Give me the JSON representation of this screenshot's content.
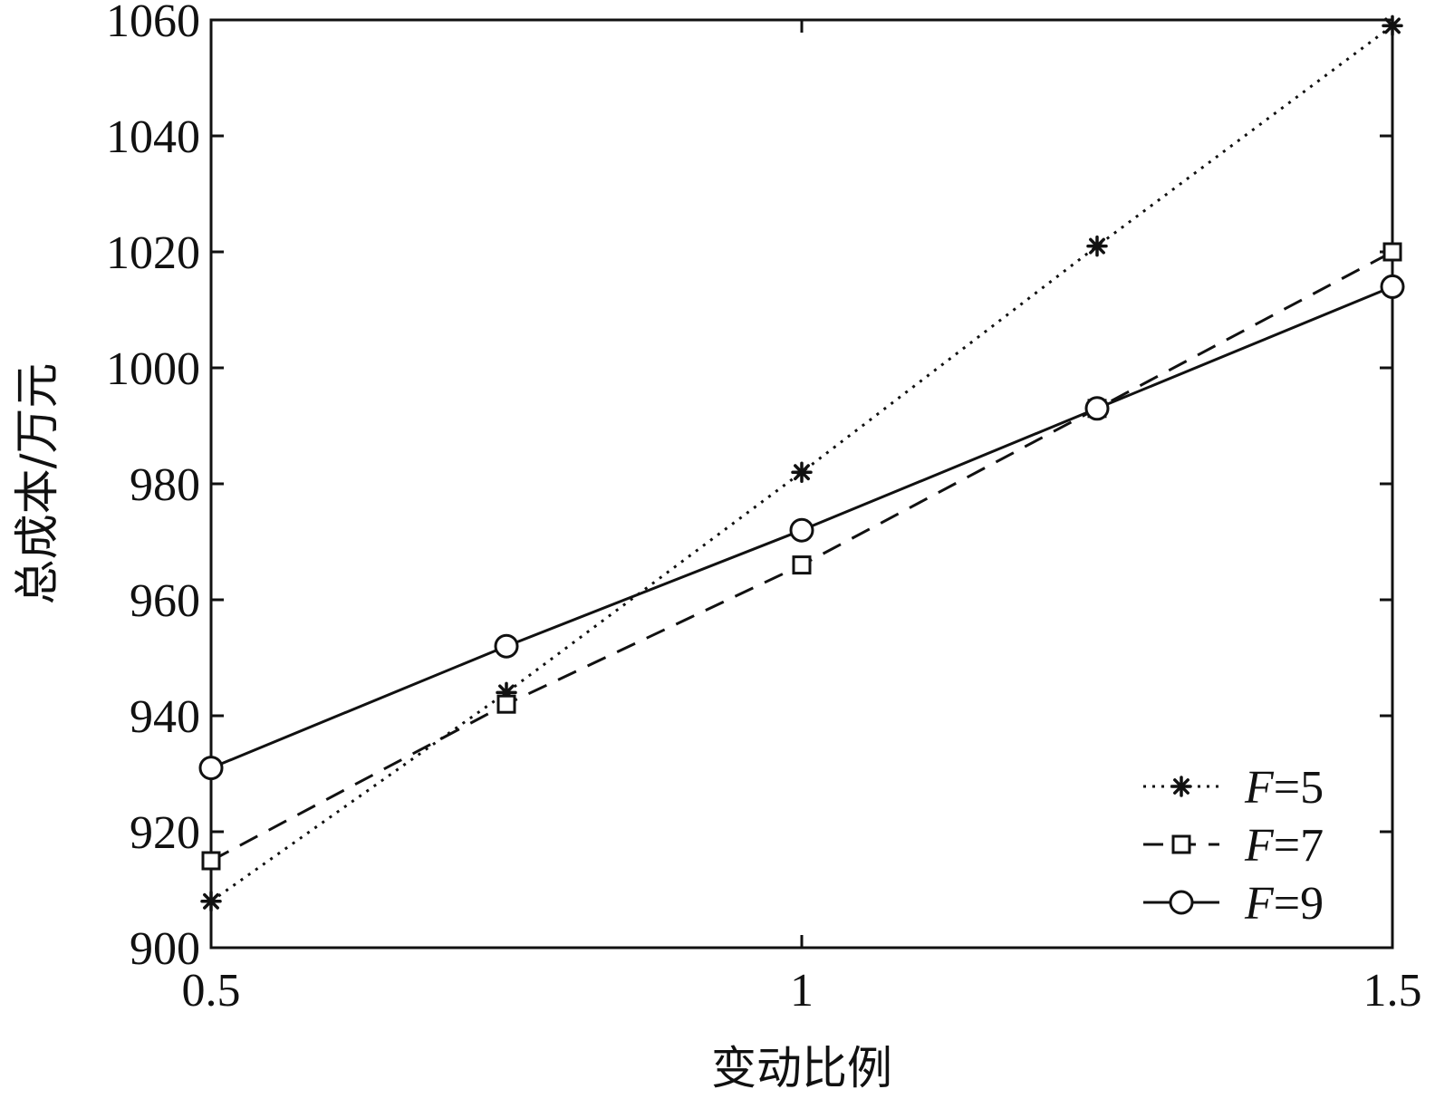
{
  "chart_data": {
    "type": "line",
    "title": "",
    "xlabel": "变动比例",
    "ylabel": "总成本/万元",
    "xlim": [
      0.5,
      1.5
    ],
    "ylim": [
      900,
      1060
    ],
    "x": [
      0.5,
      0.75,
      1.0,
      1.25,
      1.5
    ],
    "xticks": [
      0.5,
      1,
      1.5
    ],
    "xtick_labels": [
      "0.5",
      "1",
      "1.5"
    ],
    "yticks": [
      900,
      920,
      940,
      960,
      980,
      1000,
      1020,
      1040,
      1060
    ],
    "ytick_labels": [
      "900",
      "920",
      "940",
      "960",
      "980",
      "1000",
      "1020",
      "1040",
      "1060"
    ],
    "grid": false,
    "legend_position": "bottom-right",
    "series": [
      {
        "name": "F=5",
        "label_var": "F",
        "label_rest": "=5",
        "marker": "asterisk",
        "line": "dotted",
        "values": [
          908,
          944,
          982,
          1021,
          1059
        ]
      },
      {
        "name": "F=7",
        "label_var": "F",
        "label_rest": "=7",
        "marker": "square",
        "line": "dashed",
        "values": [
          915,
          942,
          966,
          993,
          1020
        ]
      },
      {
        "name": "F=9",
        "label_var": "F",
        "label_rest": "=9",
        "marker": "circle",
        "line": "solid",
        "values": [
          931,
          952,
          972,
          993,
          1014
        ]
      }
    ]
  }
}
